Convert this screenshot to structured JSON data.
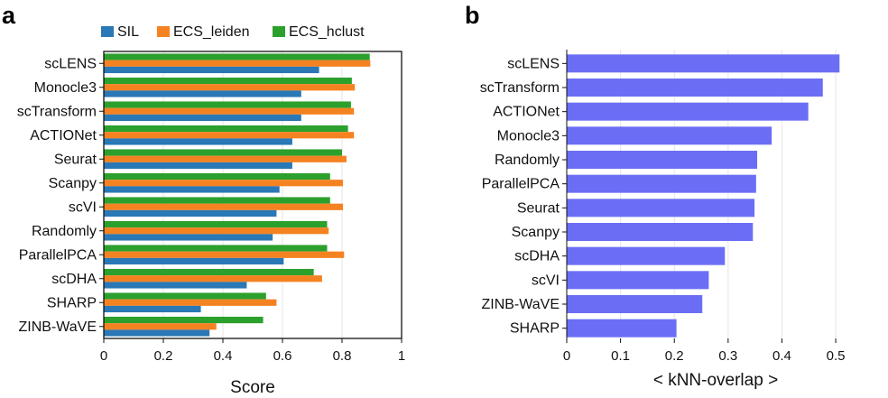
{
  "panels": {
    "a_letter": "a",
    "b_letter": "b"
  },
  "chart_data": [
    {
      "type": "bar",
      "orientation": "horizontal",
      "title": "",
      "xlabel": "Score",
      "ylabel": "",
      "xlim": [
        0,
        1
      ],
      "xticks": [
        "0",
        "0.2",
        "0.4",
        "0.6",
        "0.8",
        "1"
      ],
      "grid": true,
      "legend_position": "top",
      "categories": [
        "scLENS",
        "Monocle3",
        "scTransform",
        "ACTIONet",
        "Seurat",
        "Scanpy",
        "scVI",
        "Randomly",
        "ParallelPCA",
        "scDHA",
        "SHARP",
        "ZINB-WaVE"
      ],
      "series": [
        {
          "name": "SIL",
          "color": "#2a78b5",
          "values": [
            0.723,
            0.663,
            0.663,
            0.633,
            0.633,
            0.59,
            0.58,
            0.567,
            0.604,
            0.48,
            0.326,
            0.355
          ]
        },
        {
          "name": "ECS_leiden",
          "color": "#f58220",
          "values": [
            0.895,
            0.843,
            0.84,
            0.84,
            0.815,
            0.803,
            0.803,
            0.755,
            0.807,
            0.733,
            0.58,
            0.378
          ]
        },
        {
          "name": "ECS_hclust",
          "color": "#2ca02c",
          "values": [
            0.893,
            0.833,
            0.83,
            0.82,
            0.8,
            0.76,
            0.76,
            0.75,
            0.75,
            0.705,
            0.545,
            0.535
          ]
        }
      ]
    },
    {
      "type": "bar",
      "orientation": "horizontal",
      "title": "",
      "xlabel": "< kNN-overlap >",
      "ylabel": "",
      "xlim": [
        0,
        0.52
      ],
      "xticks": [
        "0",
        "0.1",
        "0.2",
        "0.3",
        "0.4",
        "0.5"
      ],
      "grid": true,
      "categories": [
        "scLENS",
        "scTransform",
        "ACTIONet",
        "Monocle3",
        "Randomly",
        "ParallelPCA",
        "Seurat",
        "Scanpy",
        "scDHA",
        "scVI",
        "ZINB-WaVE",
        "SHARP"
      ],
      "series": [
        {
          "name": "kNN-overlap",
          "color": "#6b6ef5",
          "values": [
            0.507,
            0.476,
            0.449,
            0.381,
            0.354,
            0.352,
            0.349,
            0.346,
            0.294,
            0.264,
            0.252,
            0.204
          ]
        }
      ]
    }
  ]
}
